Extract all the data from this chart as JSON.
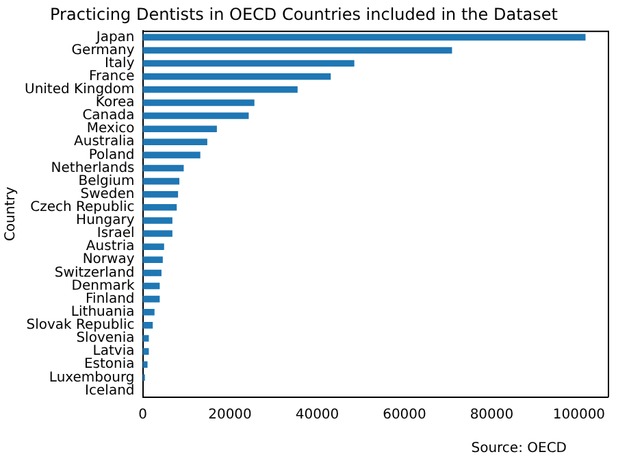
{
  "chart_data": {
    "type": "bar",
    "orientation": "horizontal",
    "title": "Practicing Dentists in OECD Countries included in the Dataset",
    "ylabel": "Country",
    "categories": [
      "Japan",
      "Germany",
      "Italy",
      "France",
      "United Kingdom",
      "Korea",
      "Canada",
      "Mexico",
      "Australia",
      "Poland",
      "Netherlands",
      "Belgium",
      "Sweden",
      "Czech Republic",
      "Hungary",
      "Israel",
      "Austria",
      "Norway",
      "Switzerland",
      "Denmark",
      "Finland",
      "Lithuania",
      "Slovak Republic",
      "Slovenia",
      "Latvia",
      "Estonia",
      "Luxembourg",
      "Iceland"
    ],
    "values": [
      101500,
      70900,
      48500,
      43100,
      35500,
      25600,
      24300,
      17000,
      14800,
      13200,
      9400,
      8400,
      8100,
      7800,
      6800,
      6800,
      4900,
      4600,
      4300,
      3900,
      3900,
      2700,
      2300,
      1400,
      1400,
      1100,
      500,
      null
    ],
    "color": "#1f77b4",
    "xlim": [
      0,
      106600
    ],
    "xticks": [
      0,
      20000,
      40000,
      60000,
      80000,
      100000
    ],
    "grid": false,
    "legend": false,
    "annotations": [
      "Source: OECD"
    ]
  }
}
